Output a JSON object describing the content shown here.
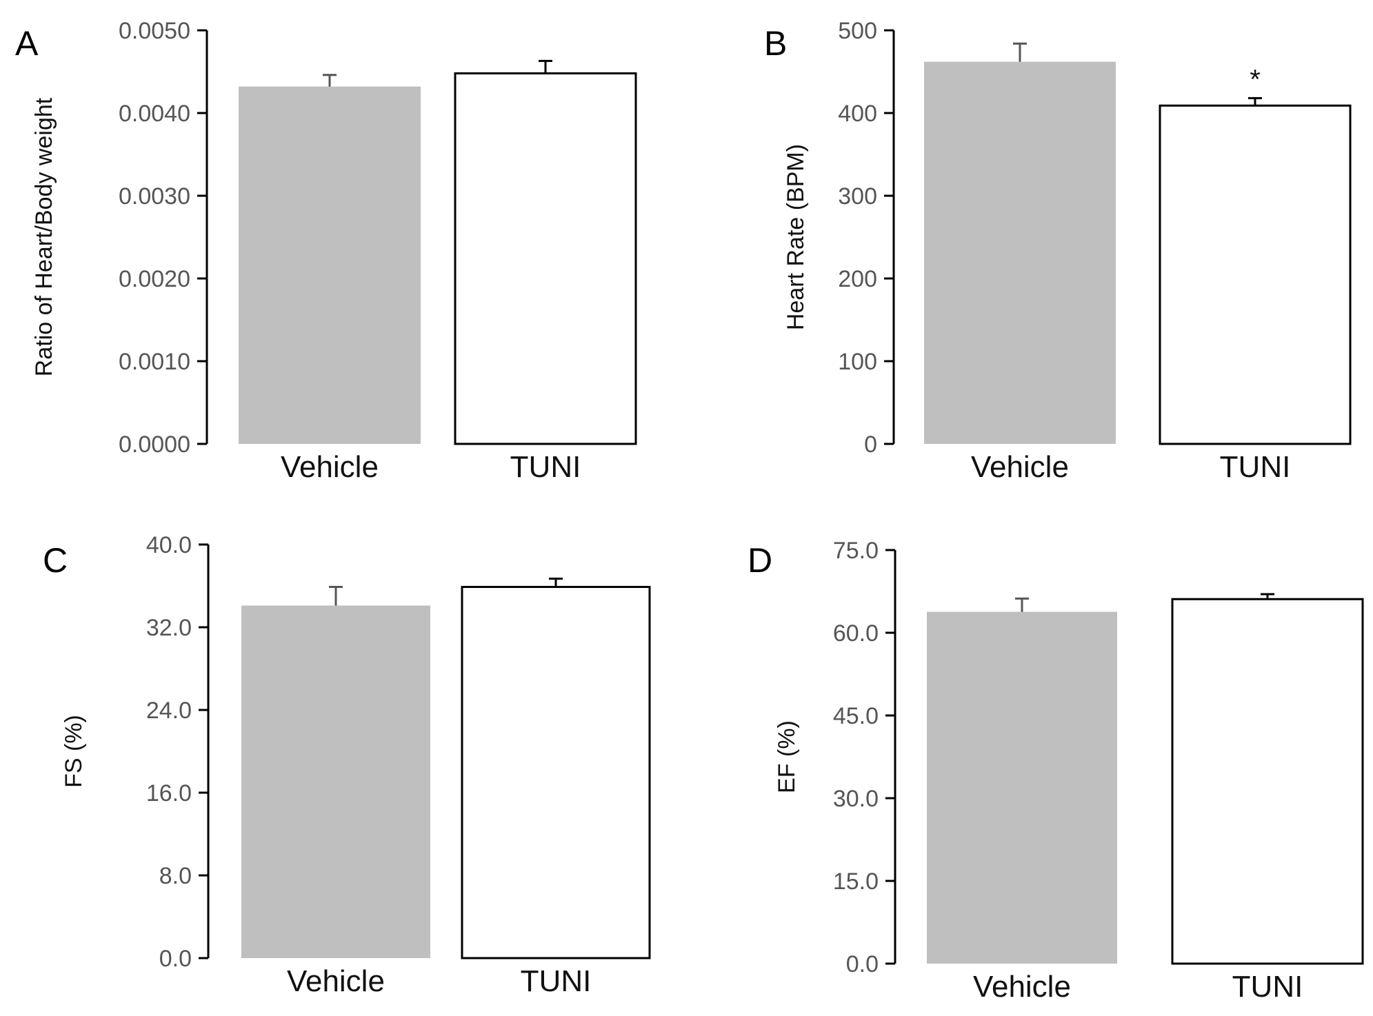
{
  "chart_data": [
    {
      "panel": "A",
      "type": "bar",
      "categories": [
        "Vehicle",
        "TUNI"
      ],
      "values": [
        0.00432,
        0.00448
      ],
      "errors": [
        0.00014,
        0.00015
      ],
      "fills": [
        "#bfbfbf",
        "#ffffff"
      ],
      "ylabel": "Ratio of Heart/Body weight",
      "ylim": [
        0,
        0.005
      ],
      "yticks": [
        "0.0000",
        "0.0010",
        "0.0020",
        "0.0030",
        "0.0040",
        "0.0050"
      ],
      "annotations": [
        "",
        ""
      ]
    },
    {
      "panel": "B",
      "type": "bar",
      "categories": [
        "Vehicle",
        "TUNI"
      ],
      "values": [
        462,
        409
      ],
      "errors": [
        22,
        9
      ],
      "fills": [
        "#bfbfbf",
        "#ffffff"
      ],
      "ylabel": "Heart Rate (BPM)",
      "ylim": [
        0,
        500
      ],
      "yticks": [
        "0",
        "100",
        "200",
        "300",
        "400",
        "500"
      ],
      "annotations": [
        "",
        "*"
      ]
    },
    {
      "panel": "C",
      "type": "bar",
      "categories": [
        "Vehicle",
        "TUNI"
      ],
      "values": [
        34.1,
        35.9
      ],
      "errors": [
        1.8,
        0.8
      ],
      "fills": [
        "#bfbfbf",
        "#ffffff"
      ],
      "ylabel": "FS (%)",
      "ylim": [
        0,
        40
      ],
      "yticks": [
        "0.0",
        "8.0",
        "16.0",
        "24.0",
        "32.0",
        "40.0"
      ],
      "annotations": [
        "",
        ""
      ]
    },
    {
      "panel": "D",
      "type": "bar",
      "categories": [
        "Vehicle",
        "TUNI"
      ],
      "values": [
        63.8,
        66.1
      ],
      "errors": [
        2.4,
        0.9
      ],
      "fills": [
        "#bfbfbf",
        "#ffffff"
      ],
      "ylabel": "EF (%)",
      "ylim": [
        0,
        75
      ],
      "yticks": [
        "0.0",
        "15.0",
        "30.0",
        "45.0",
        "60.0",
        "75.0"
      ],
      "annotations": [
        "",
        ""
      ]
    }
  ]
}
